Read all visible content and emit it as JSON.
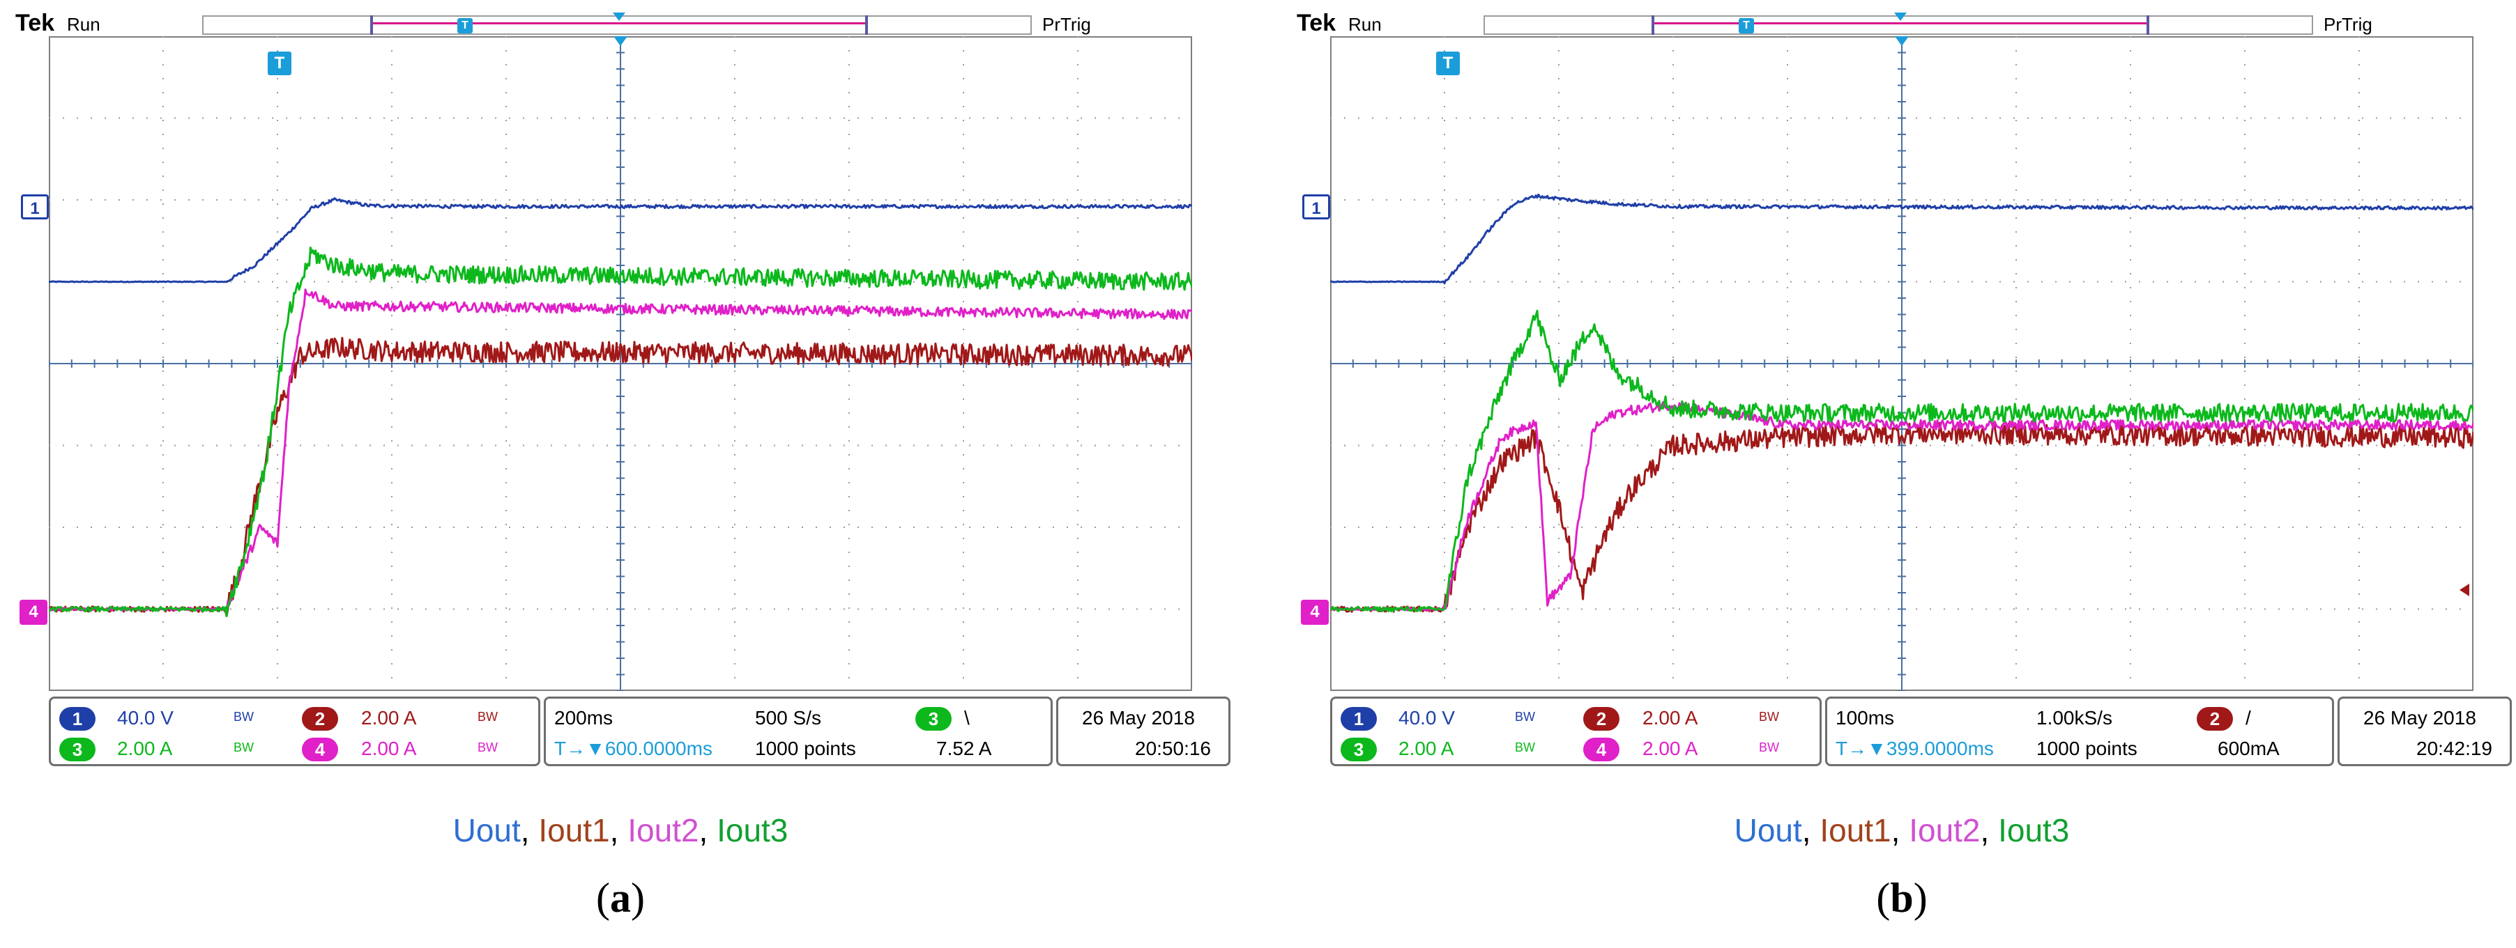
{
  "colors": {
    "uout": "#1f3fa8",
    "iout1": "#a01818",
    "iout2": "#e020c8",
    "iout3": "#0cb81c",
    "grid": "#9a9a9a",
    "axis": "#4a6fa0",
    "trigger": "#1b9dd9"
  },
  "legend": {
    "uout": "Uout",
    "iout1": "Iout1",
    "iout2": "Iout2",
    "iout3": "Iout3",
    "sep": ","
  },
  "panels": [
    {
      "caption_open": "(",
      "caption_letter": "a",
      "caption_close": ")",
      "header": {
        "brand": "Tek",
        "state": "Run",
        "trigger_state": "PrTrig"
      },
      "trigger_marker": "T",
      "record_window": {
        "start_frac": 0.085,
        "end_frac": 0.355,
        "center_frac": 0.215
      },
      "trigger_frac_x": 0.1,
      "ch_markers": [
        {
          "label": "1",
          "level_div": 1.0
        },
        {
          "label": "4",
          "level_div": -3.0
        }
      ],
      "channels": {
        "ch1": {
          "badge": "1",
          "scale": "40.0 V",
          "bw": "BW"
        },
        "ch2": {
          "badge": "2",
          "scale": "2.00 A",
          "bw": "BW"
        },
        "ch3": {
          "badge": "3",
          "scale": "2.00 A",
          "bw": "BW"
        },
        "ch4": {
          "badge": "4",
          "scale": "2.00 A",
          "bw": "BW"
        }
      },
      "timebase": {
        "time_div": "200ms",
        "sample_rate": "500 S/s",
        "position_label": "T→▼600.0000ms",
        "record_length": "1000 points",
        "trig_channel": "3",
        "trig_slope": "\\",
        "trig_level": "7.52 A"
      },
      "datetime": {
        "date": "26 May 2018",
        "time": "20:50:16"
      },
      "chart_data": {
        "type": "line",
        "x_unit": "div",
        "xlim": [
          0,
          10
        ],
        "ylim": [
          -4,
          4
        ],
        "grid": true,
        "series": [
          {
            "name": "Uout",
            "x": [
              0,
              1.55,
              1.8,
              2.1,
              2.3,
              2.5,
              2.8,
              3.5,
              10
            ],
            "y": [
              1.0,
              1.0,
              1.2,
              1.6,
              1.9,
              2.0,
              1.93,
              1.92,
              1.92
            ]
          },
          {
            "name": "Iout1",
            "x": [
              0,
              1.55,
              1.65,
              1.8,
              2.0,
              2.2,
              2.5,
              3.0,
              10
            ],
            "y": [
              -3.0,
              -3.0,
              -2.6,
              -1.7,
              -0.6,
              0.1,
              0.2,
              0.15,
              0.1
            ]
          },
          {
            "name": "Iout2",
            "x": [
              0,
              1.55,
              1.7,
              1.85,
              2.0,
              2.1,
              2.25,
              2.5,
              3.0,
              10
            ],
            "y": [
              -3.0,
              -3.0,
              -2.5,
              -2.0,
              -2.2,
              -0.3,
              0.9,
              0.7,
              0.7,
              0.6
            ]
          },
          {
            "name": "Iout3",
            "x": [
              0,
              1.55,
              1.7,
              1.9,
              2.1,
              2.3,
              2.5,
              3.0,
              10
            ],
            "y": [
              -3.0,
              -3.0,
              -2.4,
              -1.2,
              0.6,
              1.35,
              1.2,
              1.1,
              1.0
            ]
          }
        ]
      }
    },
    {
      "caption_open": "(",
      "caption_letter": "b",
      "caption_close": ")",
      "header": {
        "brand": "Tek",
        "state": "Run",
        "trigger_state": "PrTrig"
      },
      "trigger_marker": "T",
      "record_window": {
        "start_frac": 0.085,
        "end_frac": 0.355,
        "center_frac": 0.215
      },
      "trigger_frac_x": 0.1,
      "ch_markers": [
        {
          "label": "1",
          "level_div": 1.0
        },
        {
          "label": "4",
          "level_div": -3.0
        }
      ],
      "channels": {
        "ch1": {
          "badge": "1",
          "scale": "40.0 V",
          "bw": "BW"
        },
        "ch2": {
          "badge": "2",
          "scale": "2.00 A",
          "bw": "BW"
        },
        "ch3": {
          "badge": "3",
          "scale": "2.00 A",
          "bw": "BW"
        },
        "ch4": {
          "badge": "4",
          "scale": "2.00 A",
          "bw": "BW"
        }
      },
      "timebase": {
        "time_div": "100ms",
        "sample_rate": "1.00kS/s",
        "position_label": "T→▼399.0000ms",
        "record_length": "1000 points",
        "trig_channel": "2",
        "trig_slope": "/",
        "trig_level": "600mA"
      },
      "datetime": {
        "date": "26 May 2018",
        "time": "20:42:19"
      },
      "chart_data": {
        "type": "line",
        "x_unit": "div",
        "xlim": [
          0,
          10
        ],
        "ylim": [
          -4,
          4
        ],
        "grid": true,
        "series": [
          {
            "name": "Uout",
            "x": [
              0,
              1.0,
              1.2,
              1.4,
              1.6,
              1.8,
              2.1,
              2.5,
              3.0,
              10
            ],
            "y": [
              1.0,
              1.0,
              1.3,
              1.65,
              1.95,
              2.05,
              2.0,
              1.95,
              1.92,
              1.9
            ]
          },
          {
            "name": "Iout1",
            "x": [
              0,
              1.0,
              1.2,
              1.5,
              1.8,
              1.95,
              2.2,
              2.4,
              2.6,
              3.0,
              4.0,
              5.0,
              10
            ],
            "y": [
              -3.0,
              -3.0,
              -2.0,
              -1.2,
              -0.9,
              -1.5,
              -2.8,
              -2.1,
              -1.6,
              -1.0,
              -0.9,
              -0.85,
              -0.9
            ]
          },
          {
            "name": "Iout2",
            "x": [
              0,
              1.0,
              1.2,
              1.5,
              1.8,
              1.9,
              2.1,
              2.3,
              2.5,
              3.0,
              4.0,
              10
            ],
            "y": [
              -3.0,
              -3.0,
              -1.9,
              -0.9,
              -0.7,
              -2.9,
              -2.6,
              -0.8,
              -0.6,
              -0.5,
              -0.75,
              -0.75
            ]
          },
          {
            "name": "Iout3",
            "x": [
              0,
              1.0,
              1.2,
              1.5,
              1.8,
              2.0,
              2.3,
              2.5,
              3.0,
              4.0,
              10
            ],
            "y": [
              -3.0,
              -3.0,
              -1.4,
              -0.3,
              0.6,
              -0.2,
              0.5,
              -0.1,
              -0.55,
              -0.6,
              -0.6
            ]
          }
        ]
      }
    }
  ]
}
